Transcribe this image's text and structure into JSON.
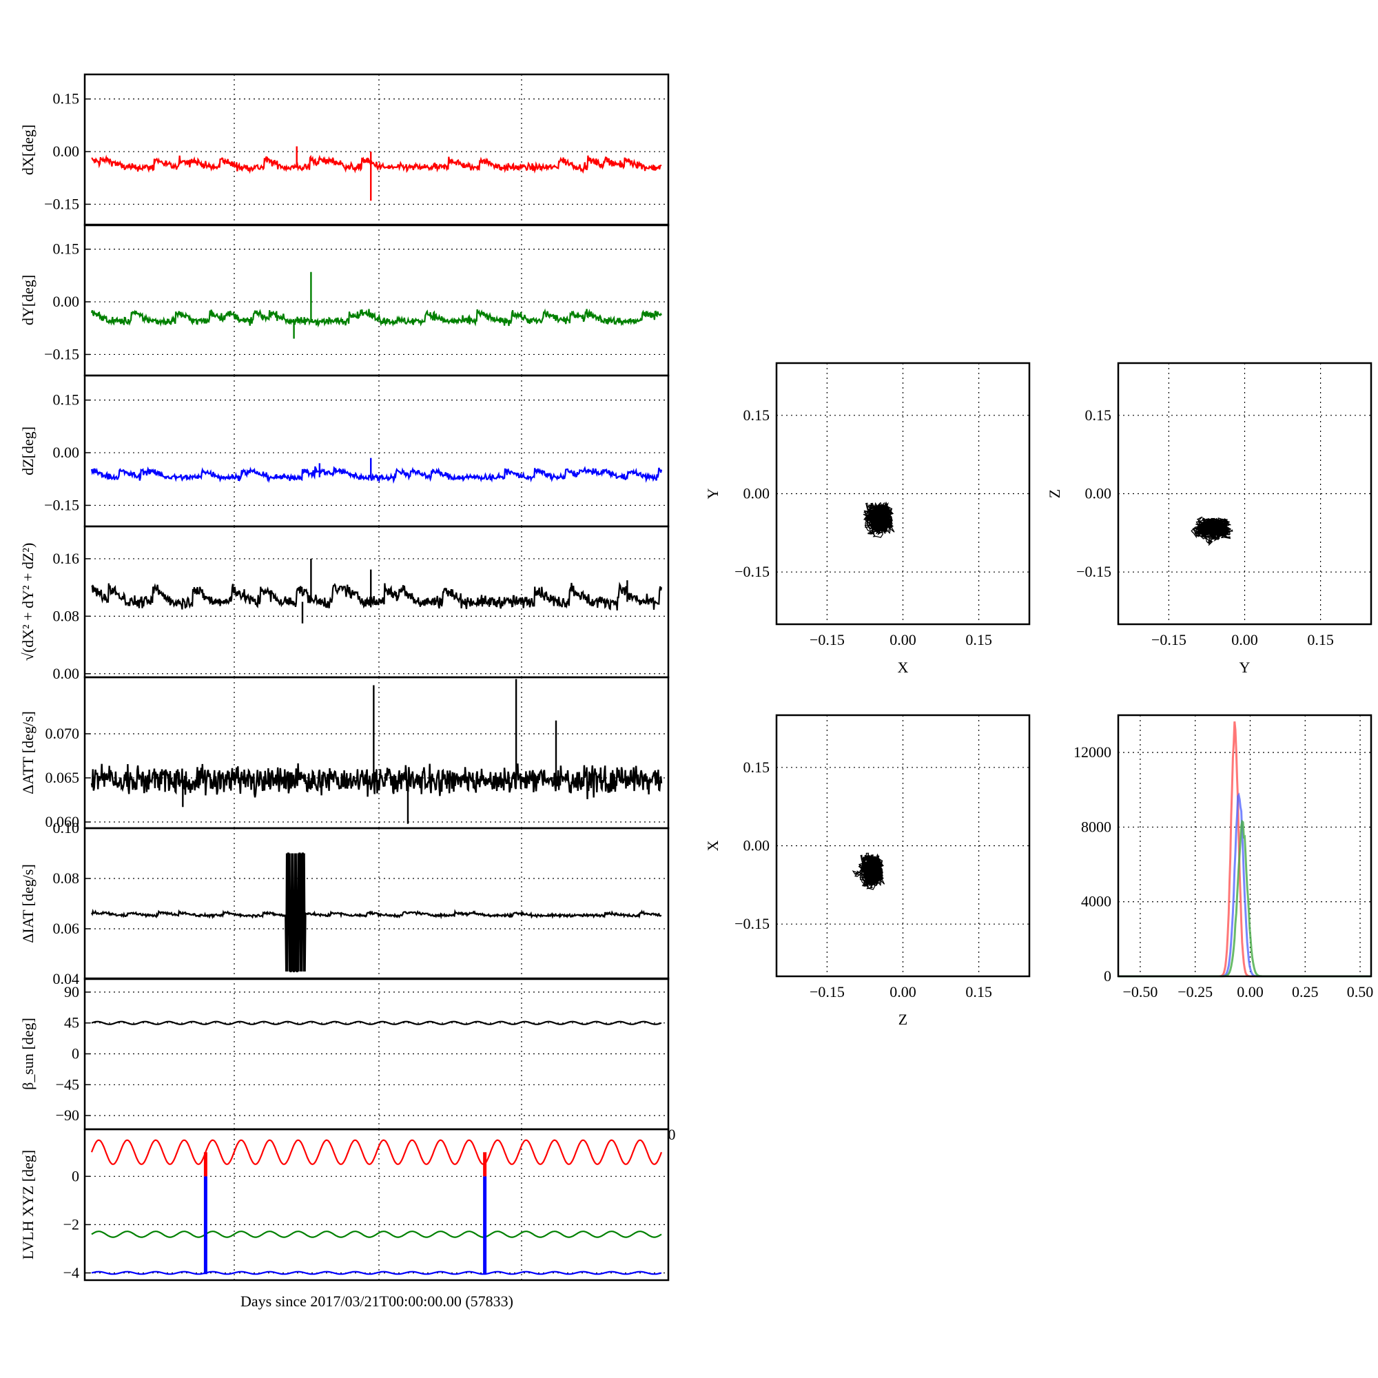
{
  "figure": {
    "xlabel_bottom": "Days since 2017/03/21T00:00:00.00 (57833)",
    "stray_tick": "0"
  },
  "chart_data": [
    {
      "id": "dx",
      "type": "line",
      "ylabel": "dX[deg]",
      "color": "#ff0000",
      "ylim": [
        -0.21,
        0.22
      ],
      "yticks": [
        "0.15",
        "0.00",
        "−0.15"
      ],
      "ytick_values": [
        0.15,
        0.0,
        -0.15
      ],
      "baseline": -0.045,
      "noise": 0.012,
      "sawtooth": true,
      "spikes": [
        [
          0.49,
          -0.14
        ],
        [
          0.36,
          0.015
        ],
        [
          0.49,
          0.0
        ]
      ]
    },
    {
      "id": "dy",
      "type": "line",
      "ylabel": "dY[deg]",
      "color": "#008000",
      "ylim": [
        -0.21,
        0.22
      ],
      "yticks": [
        "0.15",
        "0.00",
        "−0.15"
      ],
      "ytick_values": [
        0.15,
        0.0,
        -0.15
      ],
      "baseline": -0.055,
      "noise": 0.013,
      "sawtooth": true,
      "spikes": [
        [
          0.385,
          0.085
        ],
        [
          0.355,
          -0.105
        ]
      ]
    },
    {
      "id": "dz",
      "type": "line",
      "ylabel": "dZ[deg]",
      "color": "#0000ff",
      "ylim": [
        -0.21,
        0.22
      ],
      "yticks": [
        "0.15",
        "0.00",
        "−0.15"
      ],
      "ytick_values": [
        0.15,
        0.0,
        -0.15
      ],
      "baseline": -0.07,
      "noise": 0.01,
      "sawtooth": true,
      "spikes": [
        [
          0.49,
          -0.015
        ],
        [
          0.4,
          -0.03
        ]
      ]
    },
    {
      "id": "dr",
      "type": "line",
      "ylabel": "√(dX² + dY² + dZ²)",
      "color": "#000000",
      "ylim": [
        -0.005,
        0.205
      ],
      "yticks": [
        "0.16",
        "0.08",
        "0.00"
      ],
      "ytick_values": [
        0.16,
        0.08,
        0.0
      ],
      "baseline": 0.1,
      "noise": 0.01,
      "sawtooth": true,
      "spikes": [
        [
          0.385,
          0.16
        ],
        [
          0.49,
          0.145
        ],
        [
          0.37,
          0.07
        ],
        [
          0.94,
          0.13
        ]
      ]
    },
    {
      "id": "datt",
      "type": "line",
      "ylabel": "ΔATT [deg/s]",
      "color": "#000000",
      "ylim": [
        0.0593,
        0.0764
      ],
      "yticks": [
        "0.070",
        "0.065",
        "0.060"
      ],
      "ytick_values": [
        0.07,
        0.065,
        0.06
      ],
      "baseline": 0.0648,
      "noise": 0.0009,
      "sawtooth": false,
      "spikes": [
        [
          0.495,
          0.0755
        ],
        [
          0.745,
          0.0762
        ],
        [
          0.815,
          0.0715
        ],
        [
          0.555,
          0.0598
        ],
        [
          0.16,
          0.0617
        ]
      ]
    },
    {
      "id": "diat",
      "type": "line",
      "ylabel": "ΔIAT [deg/s]",
      "color": "#000000",
      "ylim": [
        0.04,
        0.1
      ],
      "yticks": [
        "0.10",
        "0.08",
        "0.06",
        "0.04"
      ],
      "ytick_values": [
        0.1,
        0.08,
        0.06,
        0.04
      ],
      "baseline": 0.0653,
      "noise": 0.0006,
      "sawtooth": true,
      "burst": [
        0.34,
        0.375,
        0.043,
        0.09
      ]
    },
    {
      "id": "beta",
      "type": "line",
      "ylabel": "β_sun [deg]",
      "color": "#000000",
      "ylim": [
        -110,
        110
      ],
      "yticks": [
        "90",
        "45",
        "0",
        "−45",
        "−90"
      ],
      "ytick_values": [
        90,
        45,
        0,
        -45,
        -90
      ],
      "baseline": 45,
      "amplitude": 2,
      "waves": 24
    },
    {
      "id": "lvlh",
      "type": "line",
      "ylabel": "LVLH XYZ [deg]",
      "ylim": [
        -4.3,
        1.95
      ],
      "yticks": [
        "0",
        "−2",
        "−4"
      ],
      "ytick_values": [
        0,
        -2,
        -4
      ],
      "series": [
        {
          "color": "#ff0000",
          "baseline": 1.0,
          "amplitude": 0.5,
          "waves": 20
        },
        {
          "color": "#008000",
          "baseline": -2.4,
          "amplitude": 0.12,
          "waves": 20
        },
        {
          "color": "#0000ff",
          "baseline": -4.0,
          "amplitude": 0.05,
          "waves": 20
        }
      ],
      "bars": [
        0.2,
        0.69
      ]
    },
    {
      "id": "xy",
      "type": "scatter",
      "xlabel": "X",
      "ylabel": "Y",
      "xlim": [
        -0.25,
        0.25
      ],
      "ylim": [
        -0.25,
        0.25
      ],
      "ticks": [
        "−0.15",
        "0.00",
        "0.15"
      ],
      "tick_values": [
        -0.15,
        0.0,
        0.15
      ],
      "center": [
        -0.045,
        -0.045
      ],
      "spread": [
        0.03,
        0.03
      ]
    },
    {
      "id": "yz",
      "type": "scatter",
      "xlabel": "Y",
      "ylabel": "Z",
      "xlim": [
        -0.25,
        0.25
      ],
      "ylim": [
        -0.25,
        0.25
      ],
      "ticks": [
        "−0.15",
        "0.00",
        "0.15"
      ],
      "tick_values": [
        -0.15,
        0.0,
        0.15
      ],
      "center": [
        -0.06,
        -0.065
      ],
      "spread": [
        0.035,
        0.022
      ]
    },
    {
      "id": "zx",
      "type": "scatter",
      "xlabel": "Z",
      "ylabel": "X",
      "xlim": [
        -0.25,
        0.25
      ],
      "ylim": [
        -0.25,
        0.25
      ],
      "ticks": [
        "−0.15",
        "0.00",
        "0.15"
      ],
      "tick_values": [
        -0.15,
        0.0,
        0.15
      ],
      "center": [
        -0.06,
        -0.045
      ],
      "spread": [
        0.025,
        0.03
      ]
    },
    {
      "id": "hist",
      "type": "line",
      "xlim": [
        -0.6,
        0.55
      ],
      "ylim": [
        0,
        14000
      ],
      "xticks": [
        "−0.50",
        "−0.25",
        "0.00",
        "0.25",
        "0.50"
      ],
      "xtick_values": [
        -0.5,
        -0.25,
        0.0,
        0.25,
        0.5
      ],
      "yticks": [
        "12000",
        "8000",
        "4000",
        "0"
      ],
      "ytick_values": [
        12000,
        8000,
        4000,
        0
      ],
      "series": [
        {
          "color": "#ff5555",
          "peak_x": -0.07,
          "peak": 13200,
          "width": 0.017
        },
        {
          "color": "#5566ff",
          "peak_x": -0.05,
          "peak": 9800,
          "width": 0.02
        },
        {
          "color": "#44aa44",
          "peak_x": -0.035,
          "peak": 8000,
          "width": 0.022
        }
      ]
    }
  ]
}
